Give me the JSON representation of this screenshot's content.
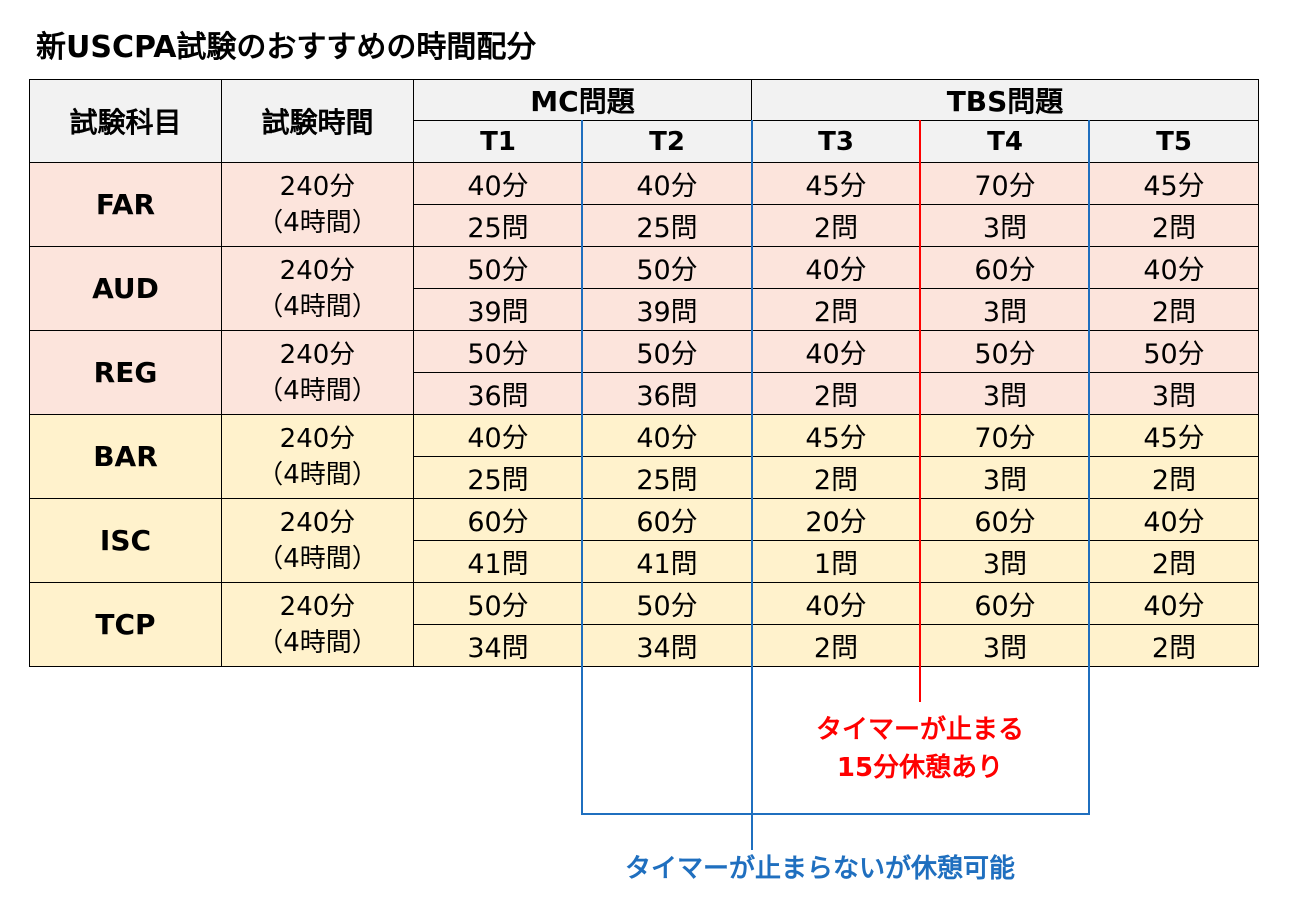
{
  "title": "新USCPA試験のおすすめの時間配分",
  "headers": {
    "subject": "試験科目",
    "time": "試験時間",
    "mc_group": "MC問題",
    "tbs_group": "TBS問題",
    "testlets": [
      "T1",
      "T2",
      "T3",
      "T4",
      "T5"
    ]
  },
  "rows": [
    {
      "subject": "FAR",
      "time": "240分",
      "time_sub": "（4時間）",
      "minutes": [
        "40分",
        "40分",
        "45分",
        "70分",
        "45分"
      ],
      "questions": [
        "25問",
        "25問",
        "2問",
        "3問",
        "2問"
      ]
    },
    {
      "subject": "AUD",
      "time": "240分",
      "time_sub": "（4時間）",
      "minutes": [
        "50分",
        "50分",
        "40分",
        "60分",
        "40分"
      ],
      "questions": [
        "39問",
        "39問",
        "2問",
        "3問",
        "2問"
      ]
    },
    {
      "subject": "REG",
      "time": "240分",
      "time_sub": "（4時間）",
      "minutes": [
        "50分",
        "50分",
        "40分",
        "50分",
        "50分"
      ],
      "questions": [
        "36問",
        "36問",
        "2問",
        "3問",
        "3問"
      ]
    },
    {
      "subject": "BAR",
      "time": "240分",
      "time_sub": "（4時間）",
      "minutes": [
        "40分",
        "40分",
        "45分",
        "70分",
        "45分"
      ],
      "questions": [
        "25問",
        "25問",
        "2問",
        "3問",
        "2問"
      ]
    },
    {
      "subject": "ISC",
      "time": "240分",
      "time_sub": "（4時間）",
      "minutes": [
        "60分",
        "60分",
        "20分",
        "60分",
        "40分"
      ],
      "questions": [
        "41問",
        "41問",
        "1問",
        "3問",
        "2問"
      ]
    },
    {
      "subject": "TCP",
      "time": "240分",
      "time_sub": "（4時間）",
      "minutes": [
        "50分",
        "50分",
        "40分",
        "60分",
        "40分"
      ],
      "questions": [
        "34問",
        "34問",
        "2問",
        "3問",
        "2問"
      ]
    }
  ],
  "notes": {
    "red_line1": "タイマーが止まる",
    "red_line2": "15分休憩あり",
    "blue": "タイマーが止まらないが休憩可能"
  },
  "colors": {
    "core_rows": "#fce4dc",
    "discipline_rows": "#fff2cc",
    "header": "#f2f2f2",
    "red_note": "#ff0000",
    "blue_note": "#1f6fbf"
  }
}
